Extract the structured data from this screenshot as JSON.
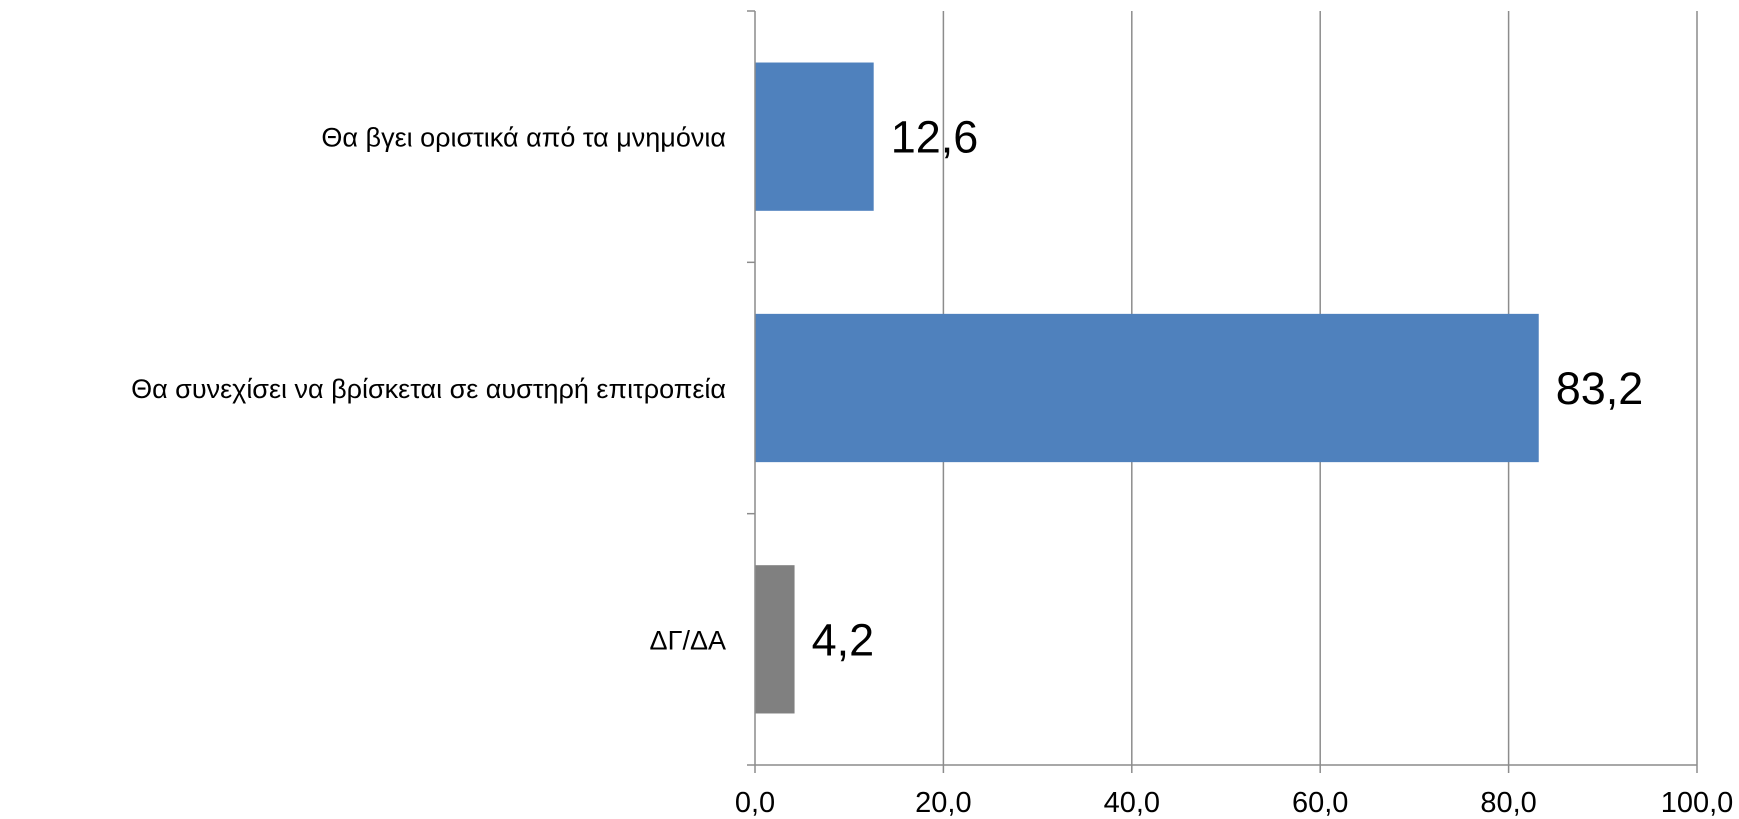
{
  "chart_data": {
    "type": "bar",
    "orientation": "horizontal",
    "title": "",
    "xlabel": "",
    "ylabel": "",
    "categories": [
      "Θα βγει οριστικά από τα μνημόνια",
      "Θα συνεχίσει να βρίσκεται σε αυστηρή επιτροπεία",
      "ΔΓ/ΔΑ"
    ],
    "values": [
      12.6,
      83.2,
      4.2
    ],
    "value_labels": [
      "12,6",
      "83,2",
      "4,2"
    ],
    "bar_colors": [
      "#4f81bd",
      "#4f81bd",
      "#808080"
    ],
    "xlim": [
      0,
      100
    ],
    "x_ticks": [
      0,
      20,
      40,
      60,
      80,
      100
    ],
    "x_tick_labels": [
      "0,0",
      "20,0",
      "40,0",
      "60,0",
      "80,0",
      "100,0"
    ],
    "grid": "vertical",
    "legend": "none"
  }
}
